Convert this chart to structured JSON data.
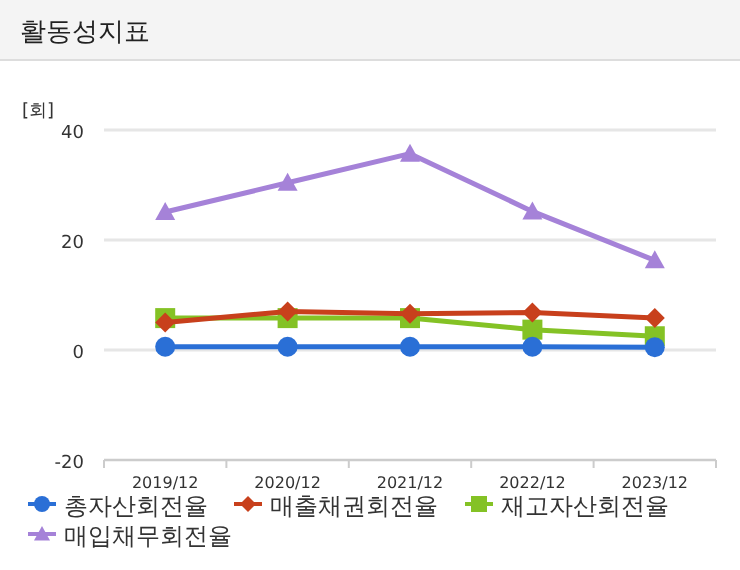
{
  "chart_data": {
    "type": "line",
    "title": "활동성지표",
    "ylabel": "[회]",
    "categories": [
      "2019/12",
      "2020/12",
      "2021/12",
      "2022/12",
      "2023/12"
    ],
    "series": [
      {
        "name": "총자산회전율",
        "color": "#2a6fd6",
        "marker": "circle",
        "values": [
          0.6,
          0.6,
          0.6,
          0.6,
          0.5
        ]
      },
      {
        "name": "매출채권회전율",
        "color": "#c8401c",
        "marker": "diamond",
        "values": [
          5.0,
          7.0,
          6.6,
          6.8,
          5.8
        ]
      },
      {
        "name": "재고자산회전율",
        "color": "#84c225",
        "marker": "square",
        "values": [
          5.8,
          5.8,
          5.8,
          3.7,
          2.5
        ]
      },
      {
        "name": "매입채무회전율",
        "color": "#a582d8",
        "marker": "triangle",
        "values": [
          25.1,
          30.4,
          35.7,
          25.2,
          16.3
        ]
      }
    ],
    "ylim": [
      -20,
      40
    ],
    "yticks": [
      -20,
      0,
      20,
      40
    ],
    "grid": "y",
    "legend": "bottom"
  }
}
